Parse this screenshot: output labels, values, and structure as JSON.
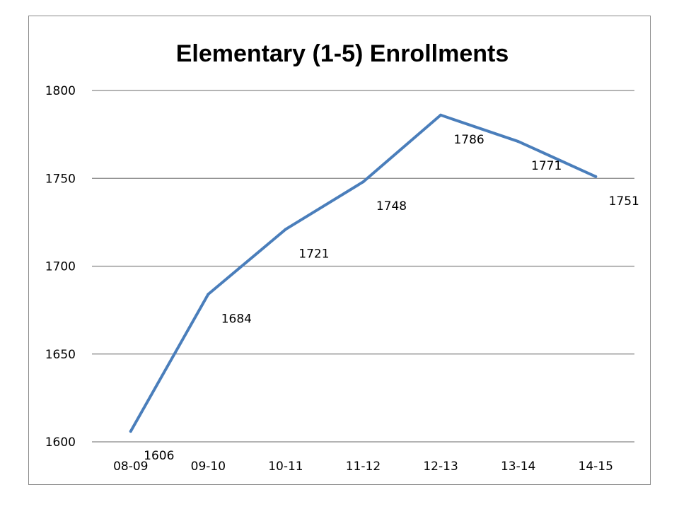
{
  "chart_data": {
    "type": "line",
    "title": "Elementary (1-5) Enrollments",
    "xlabel": "",
    "ylabel": "",
    "categories": [
      "08-09",
      "09-10",
      "10-11",
      "11-12",
      "12-13",
      "13-14",
      "14-15"
    ],
    "series": [
      {
        "values": [
          1606,
          1684,
          1721,
          1748,
          1786,
          1771,
          1751
        ],
        "color": "#4a7ebb"
      }
    ],
    "data_labels": [
      "1606",
      "1684",
      "1721",
      "1748",
      "1786",
      "1771",
      "1751"
    ],
    "ylim": [
      1600,
      1800
    ],
    "yticks": [
      "1600",
      "1650",
      "1700",
      "1750",
      "1800"
    ],
    "grid": true,
    "legend": "none",
    "gridline_color": "#868686"
  }
}
